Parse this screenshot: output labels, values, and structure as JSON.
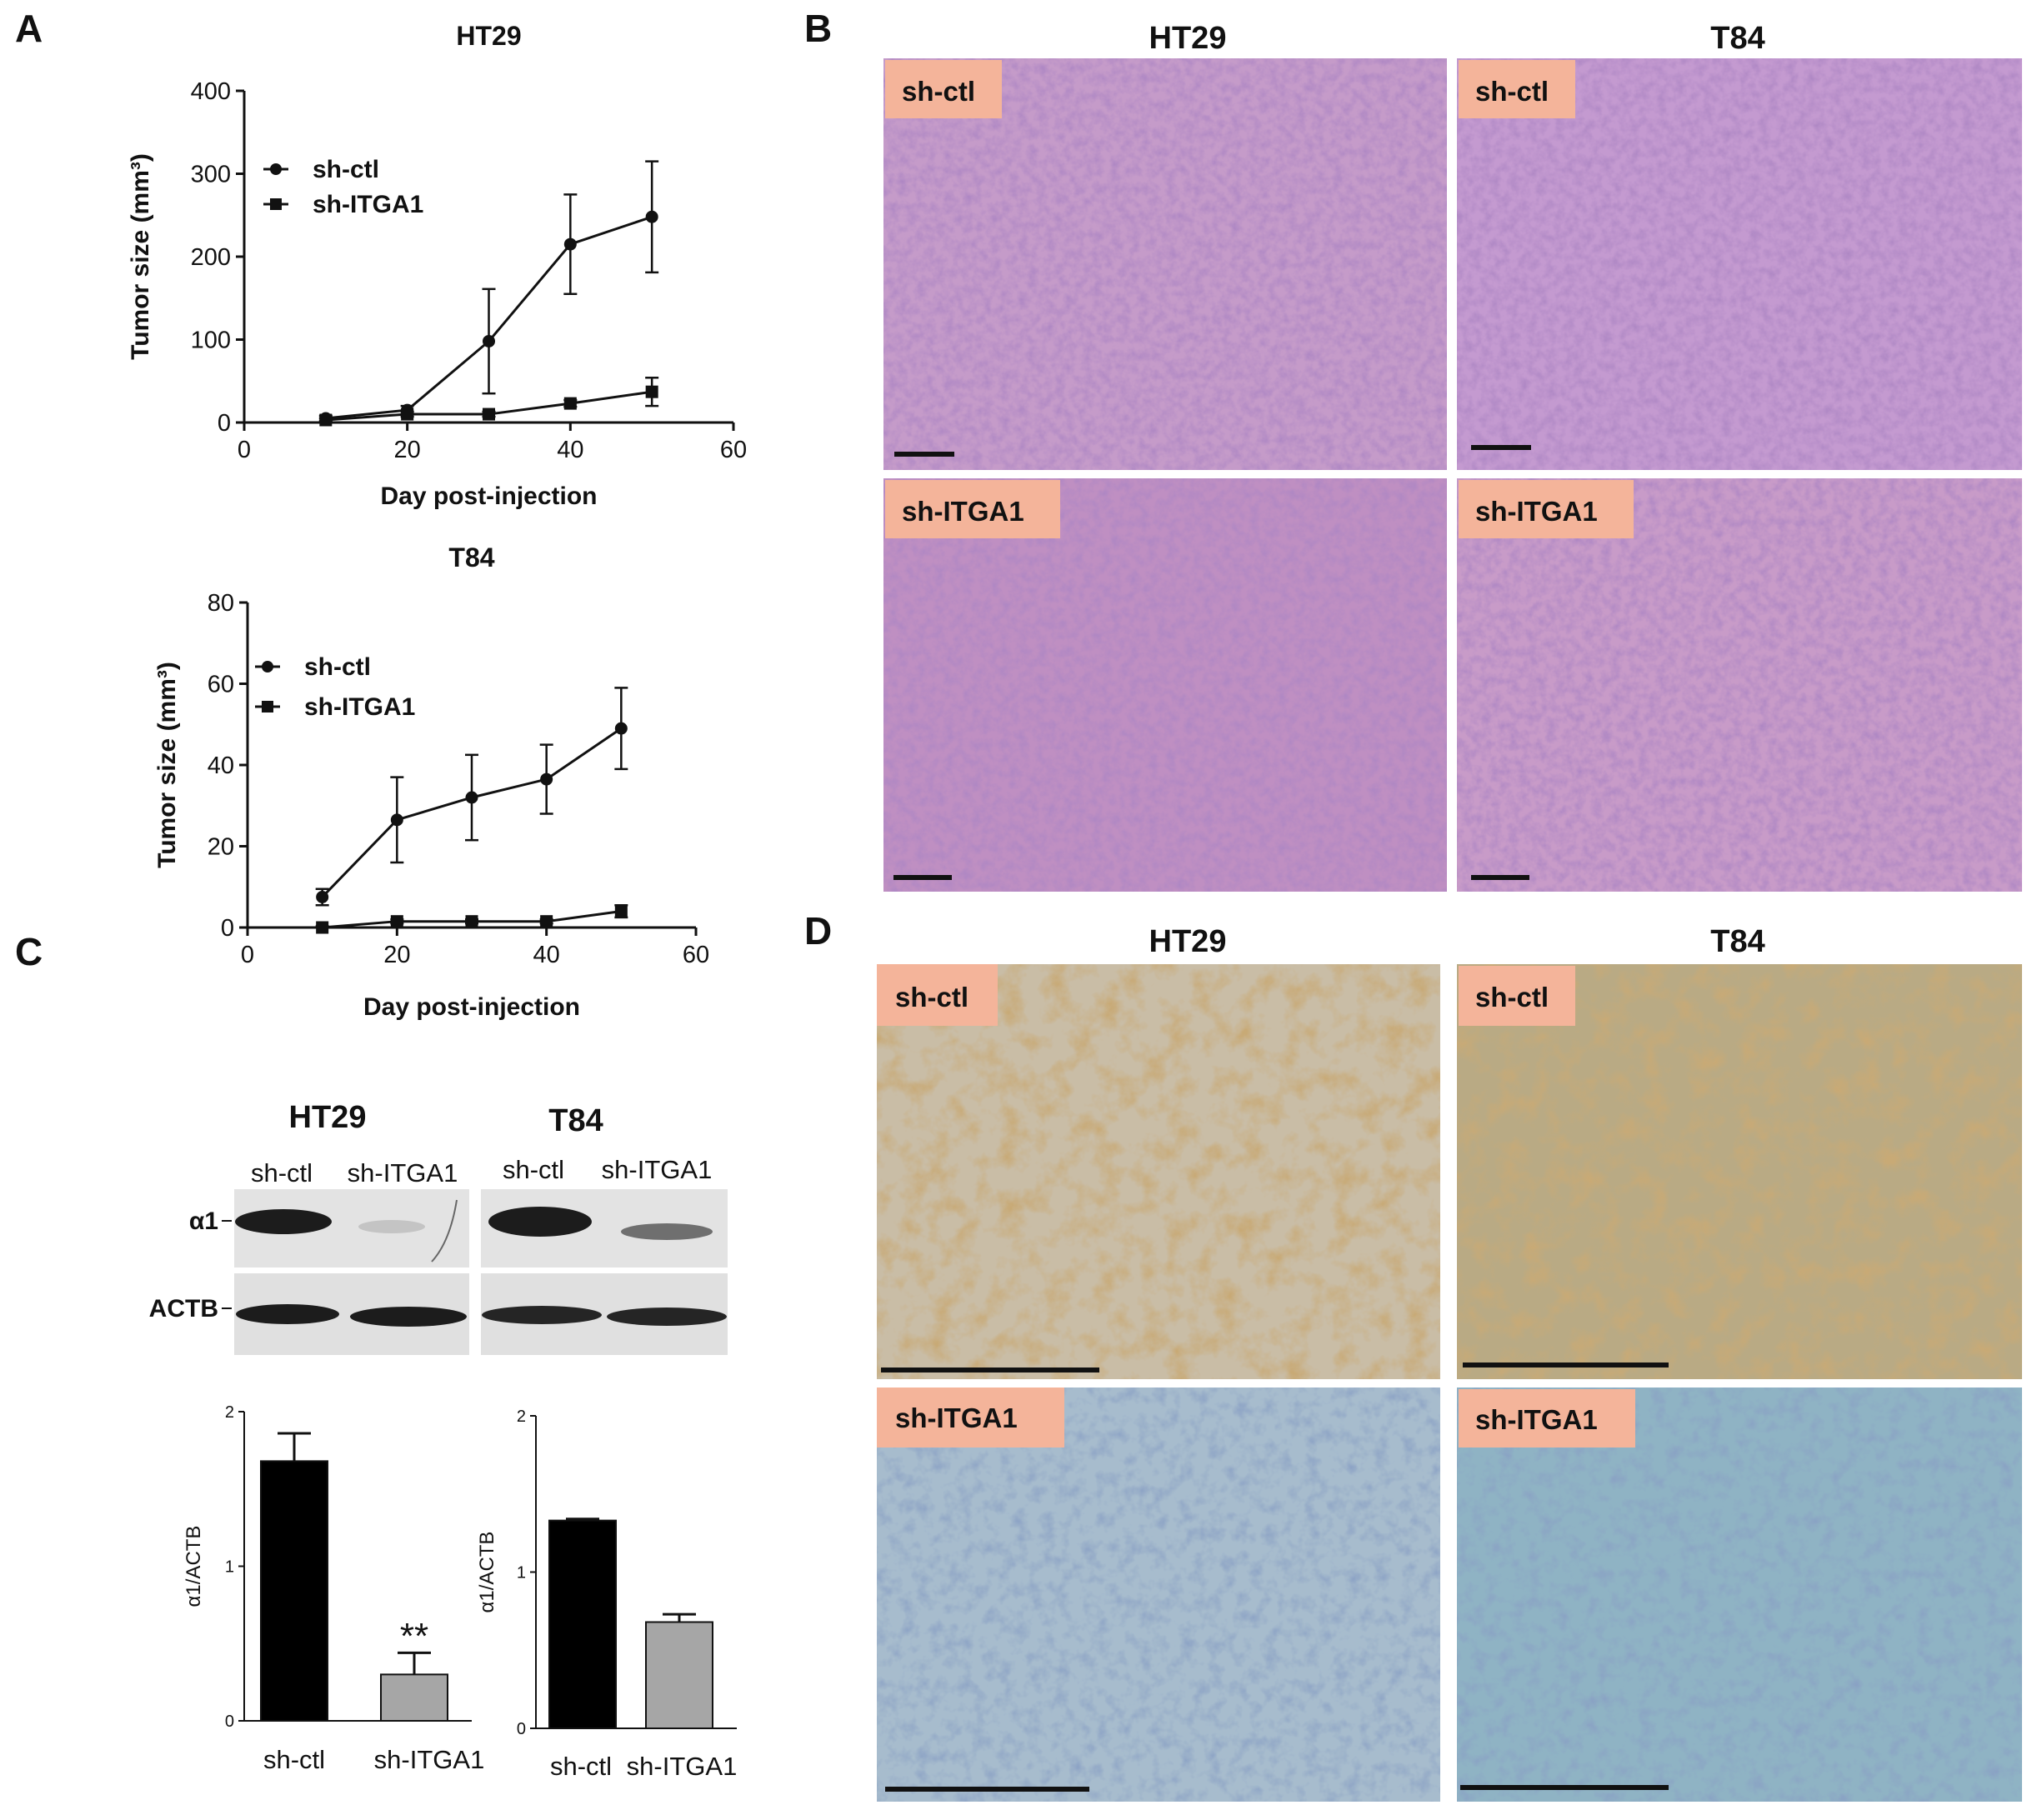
{
  "panel_letters": [
    "A",
    "B",
    "C",
    "D"
  ],
  "histology": {
    "he_columns": [
      "HT29",
      "T84"
    ],
    "ihc_columns": [
      "HT29",
      "T84"
    ],
    "row_tags": [
      "sh-ctl",
      "sh-ITGA1"
    ],
    "he_color": "#b17ab8",
    "ihc_brown": "#a9804f",
    "ihc_blue": "#8fb3c8",
    "tag_color": "#f4b49a"
  },
  "western": {
    "groups": [
      {
        "title": "HT29",
        "lanes": [
          "sh-ctl",
          "sh-ITGA1"
        ]
      },
      {
        "title": "T84",
        "lanes": [
          "sh-ctl",
          "sh-ITGA1"
        ]
      }
    ],
    "rows": [
      "α1",
      "ACTB"
    ],
    "band_intensity": {
      "HT29": {
        "α1": [
          0.95,
          0.15
        ],
        "ACTB": [
          0.95,
          0.95
        ]
      },
      "T84": {
        "α1": [
          0.95,
          0.55
        ],
        "ACTB": [
          0.9,
          0.9
        ]
      }
    }
  },
  "chart_data": [
    {
      "type": "line",
      "title": "HT29",
      "xlabel": "Day post-injection",
      "ylabel": "Tumor size (mm³)",
      "xlim": [
        0,
        60
      ],
      "ylim": [
        0,
        400
      ],
      "xticks": [
        0,
        20,
        40,
        60
      ],
      "yticks": [
        0,
        100,
        200,
        300,
        400
      ],
      "legend_position": "top-left",
      "series": [
        {
          "name": "sh-ctl",
          "marker": "circle",
          "x": [
            10,
            20,
            30,
            40,
            50
          ],
          "y": [
            5,
            15,
            98,
            215,
            248
          ],
          "err": [
            3,
            5,
            63,
            60,
            67
          ]
        },
        {
          "name": "sh-ITGA1",
          "marker": "square",
          "x": [
            10,
            20,
            30,
            40,
            50
          ],
          "y": [
            3,
            10,
            10,
            23,
            37
          ],
          "err": [
            2,
            3,
            3,
            4,
            17
          ]
        }
      ]
    },
    {
      "type": "line",
      "title": "T84",
      "xlabel": "Day post-injection",
      "ylabel": "Tumor size (mm³)",
      "xlim": [
        0,
        60
      ],
      "ylim": [
        0,
        80
      ],
      "xticks": [
        0,
        20,
        40,
        60
      ],
      "yticks": [
        0,
        20,
        40,
        60,
        80
      ],
      "legend_position": "top-left",
      "series": [
        {
          "name": "sh-ctl",
          "marker": "circle",
          "x": [
            10,
            20,
            30,
            40,
            50
          ],
          "y": [
            7.5,
            26.5,
            32,
            36.5,
            49
          ],
          "err": [
            2,
            10.5,
            10.5,
            8.5,
            10
          ]
        },
        {
          "name": "sh-ITGA1",
          "marker": "square",
          "x": [
            10,
            20,
            30,
            40,
            50
          ],
          "y": [
            0,
            1.5,
            1.5,
            1.5,
            4
          ],
          "err": [
            0.3,
            0.5,
            0.5,
            0.5,
            1.5
          ]
        }
      ]
    },
    {
      "type": "bar",
      "categories": [
        "sh-ctl",
        "sh-ITGA1"
      ],
      "values": [
        1.68,
        0.3
      ],
      "errors": [
        0.18,
        0.14
      ],
      "colors": [
        "#000000",
        "#a6a6a6"
      ],
      "ylabel": "α1/ACTB",
      "ylim": [
        0,
        2
      ],
      "yticks": [
        0,
        1,
        2
      ],
      "annotation": "**"
    },
    {
      "type": "bar",
      "categories": [
        "sh-ctl",
        "sh-ITGA1"
      ],
      "values": [
        1.33,
        0.68
      ],
      "errors": [
        0.01,
        0.05
      ],
      "colors": [
        "#000000",
        "#a6a6a6"
      ],
      "ylabel": "α1/ACTB",
      "ylim": [
        0,
        2
      ],
      "yticks": [
        0,
        1,
        2
      ]
    }
  ]
}
